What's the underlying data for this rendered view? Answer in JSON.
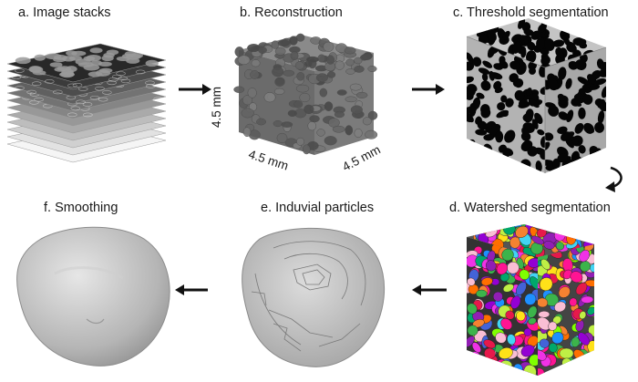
{
  "panels": {
    "a": {
      "title": "a. Image stacks"
    },
    "b": {
      "title": "b. Reconstruction",
      "dimensions": {
        "vertical": "4.5 mm",
        "front": "4.5 mm",
        "side": "4.5 mm"
      }
    },
    "c": {
      "title": "c. Threshold segmentation"
    },
    "d": {
      "title": "d. Watershed segmentation"
    },
    "e": {
      "title": "e. Induvial particles"
    },
    "f": {
      "title": "f. Smoothing"
    }
  },
  "colors": {
    "arrow": "#111111",
    "threshold_face": "#b9b9b9",
    "pore": "#050505",
    "reconstruction": "#6e6e6e",
    "particle_face": "#cdcdcd",
    "watershed_palette": [
      "#e6194b",
      "#3cb44b",
      "#ffe119",
      "#4363d8",
      "#f58231",
      "#911eb4",
      "#42d4f4",
      "#f032e6",
      "#bfef45",
      "#fabed4",
      "#00a86b",
      "#ff6f00",
      "#1e90ff",
      "#ff1493",
      "#7fff00",
      "#9400d3"
    ]
  },
  "icons": [
    "right-arrow-icon",
    "curved-arrow-icon",
    "left-arrow-icon"
  ]
}
